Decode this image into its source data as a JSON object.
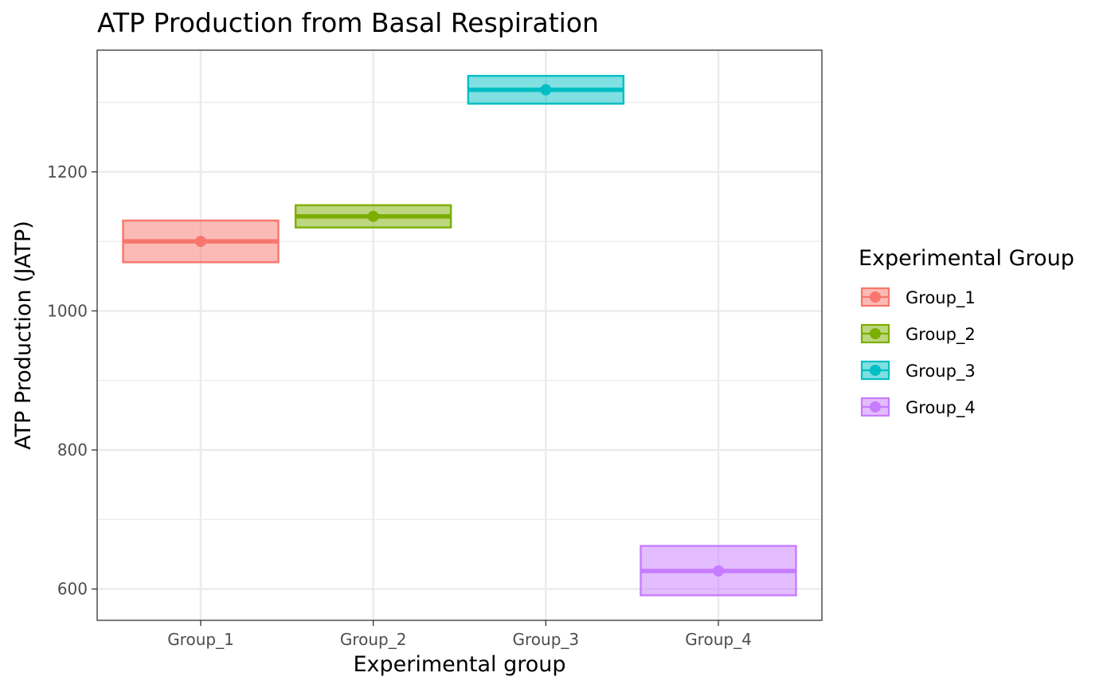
{
  "chart_data": {
    "type": "crossbar",
    "title": "ATP Production from Basal Respiration",
    "xlabel": "Experimental group",
    "ylabel": "ATP Production (JATP)",
    "ylim": [
      555,
      1375
    ],
    "y_ticks": [
      600,
      800,
      1000,
      1200
    ],
    "y_minor_ticks": [
      700,
      900,
      1100,
      1300
    ],
    "grid": true,
    "legend_title": "Experimental Group",
    "legend_position": "right",
    "categories": [
      "Group_1",
      "Group_2",
      "Group_3",
      "Group_4"
    ],
    "series": [
      {
        "name": "Group_1",
        "mean": 1100,
        "lower": 1070,
        "upper": 1130,
        "color": "#F8766D"
      },
      {
        "name": "Group_2",
        "mean": 1136,
        "lower": 1120,
        "upper": 1152,
        "color": "#7CAE00"
      },
      {
        "name": "Group_3",
        "mean": 1318,
        "lower": 1298,
        "upper": 1338,
        "color": "#00BFC4"
      },
      {
        "name": "Group_4",
        "mean": 626,
        "lower": 591,
        "upper": 662,
        "color": "#C77CFF"
      }
    ]
  }
}
